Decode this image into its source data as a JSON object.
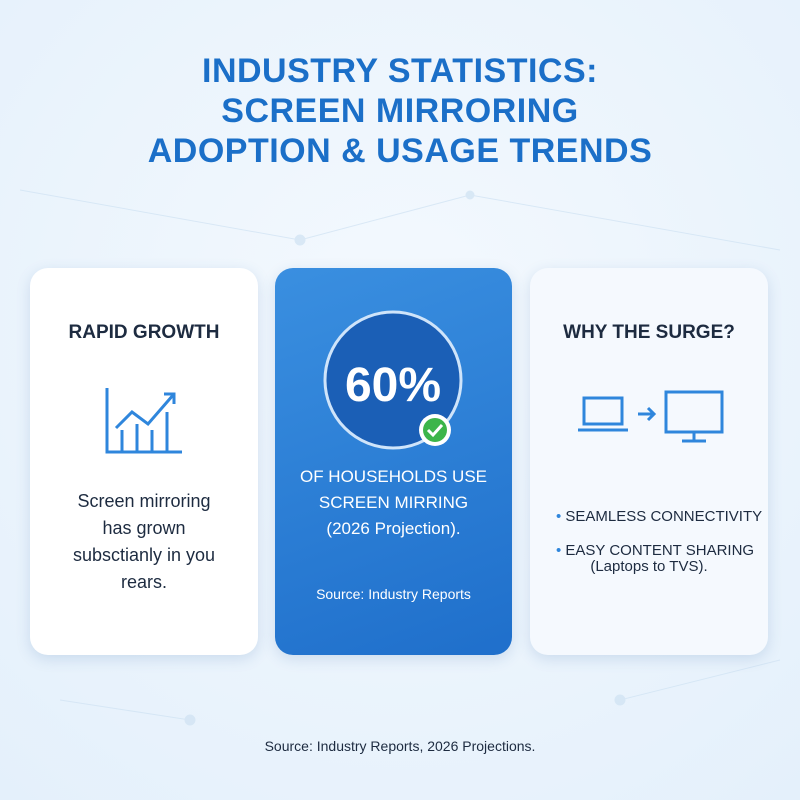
{
  "title": {
    "lines": [
      "INDUSTRY STATISTICS:",
      "SCREEN MIRRORING",
      "ADOPTION & USAGE TRENDS"
    ]
  },
  "cards": [
    {
      "heading": "RAPID GROWTH",
      "body": [
        "Screen mirroring",
        "has grown",
        "subsctianly in you",
        "rears."
      ]
    },
    {
      "stat": "60%",
      "body": [
        "OF HOUSEHOLDS USE",
        "SCREEN MIRRING",
        "(2026 Projection)."
      ],
      "source": "Source: Industry Reports"
    },
    {
      "heading": "WHY THE SURGE?",
      "bullets": [
        "SEAMLESS CONNECTIVITY",
        "EASY CONTENT SHARING"
      ],
      "note": "(Laptops to TVS)."
    }
  ],
  "footer": "Source: Industry Reports, 2026 Projections."
}
